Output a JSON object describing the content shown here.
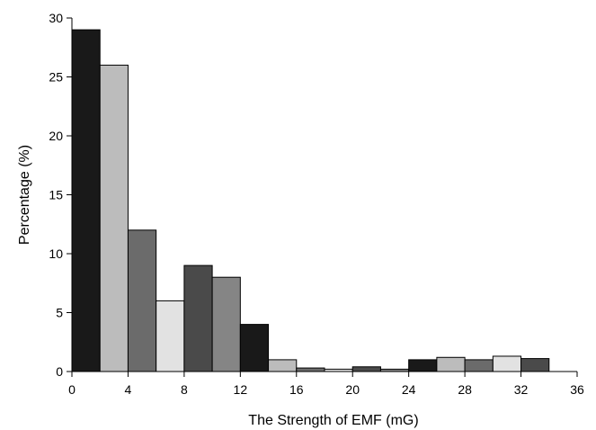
{
  "chart_data": {
    "type": "bar",
    "title": "",
    "xlabel": "The Strength of EMF (mG)",
    "ylabel": "Percentage (%)",
    "xlim": [
      0,
      36
    ],
    "ylim": [
      0,
      30
    ],
    "xticks": [
      0,
      4,
      8,
      12,
      16,
      20,
      24,
      28,
      32,
      36
    ],
    "yticks": [
      0,
      5,
      10,
      15,
      20,
      25,
      30
    ],
    "bin_width": 2,
    "bins": [
      {
        "x0": 0,
        "value": 29,
        "color": "#191919"
      },
      {
        "x0": 2,
        "value": 26,
        "color": "#bcbcbc"
      },
      {
        "x0": 4,
        "value": 12,
        "color": "#6b6b6b"
      },
      {
        "x0": 6,
        "value": 6,
        "color": "#e2e2e2"
      },
      {
        "x0": 8,
        "value": 9,
        "color": "#4a4a4a"
      },
      {
        "x0": 10,
        "value": 8,
        "color": "#858585"
      },
      {
        "x0": 12,
        "value": 4,
        "color": "#191919"
      },
      {
        "x0": 14,
        "value": 1,
        "color": "#bcbcbc"
      },
      {
        "x0": 16,
        "value": 0.3,
        "color": "#6b6b6b"
      },
      {
        "x0": 18,
        "value": 0.2,
        "color": "#e2e2e2"
      },
      {
        "x0": 20,
        "value": 0.4,
        "color": "#4a4a4a"
      },
      {
        "x0": 22,
        "value": 0.2,
        "color": "#858585"
      },
      {
        "x0": 24,
        "value": 1,
        "color": "#191919"
      },
      {
        "x0": 26,
        "value": 1.2,
        "color": "#bcbcbc"
      },
      {
        "x0": 28,
        "value": 1,
        "color": "#6b6b6b"
      },
      {
        "x0": 30,
        "value": 1.3,
        "color": "#e2e2e2"
      },
      {
        "x0": 32,
        "value": 1.1,
        "color": "#4a4a4a"
      }
    ],
    "grid": false,
    "legend": "none"
  }
}
